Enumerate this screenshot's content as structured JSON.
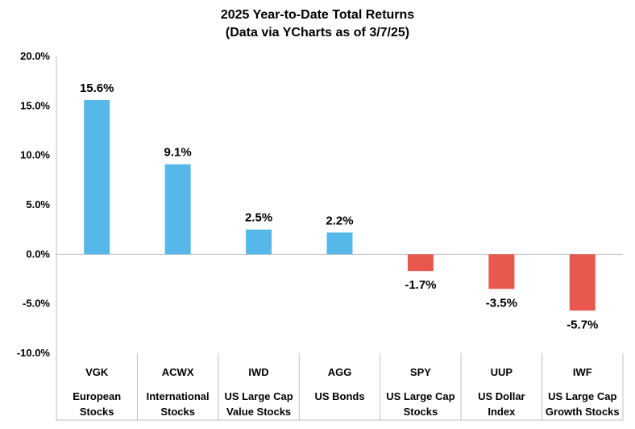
{
  "chart_data": {
    "type": "bar",
    "title": "2025 Year-to-Date Total Returns",
    "subtitle": "(Data via YCharts as of 3/7/25)",
    "xlabel": "",
    "ylabel": "",
    "ylim": [
      -10,
      20
    ],
    "yticks": [
      20,
      15,
      10,
      5,
      0,
      -5,
      -10
    ],
    "ytick_labels": [
      "20.0%",
      "15.0%",
      "10.0%",
      "5.0%",
      "0.0%",
      "-5.0%",
      "-10.0%"
    ],
    "grid": false,
    "legend": "none",
    "categories": [
      {
        "ticker": "VGK",
        "name_line1": "European",
        "name_line2": "Stocks"
      },
      {
        "ticker": "ACWX",
        "name_line1": "International",
        "name_line2": "Stocks"
      },
      {
        "ticker": "IWD",
        "name_line1": "US Large Cap",
        "name_line2": "Value Stocks"
      },
      {
        "ticker": "AGG",
        "name_line1": "US Bonds",
        "name_line2": ""
      },
      {
        "ticker": "SPY",
        "name_line1": "US Large Cap",
        "name_line2": "Stocks"
      },
      {
        "ticker": "UUP",
        "name_line1": "US Dollar",
        "name_line2": "Index"
      },
      {
        "ticker": "IWF",
        "name_line1": "US Large Cap",
        "name_line2": "Growth Stocks"
      }
    ],
    "values": [
      15.6,
      9.1,
      2.5,
      2.2,
      -1.7,
      -3.5,
      -5.7
    ],
    "data_labels": [
      "15.6%",
      "9.1%",
      "2.5%",
      "2.2%",
      "-1.7%",
      "-3.5%",
      "-5.7%"
    ],
    "colors": {
      "positive": "#56b8e8",
      "negative": "#e8584f",
      "axis": "#bfbfbf",
      "text": "#000000"
    }
  }
}
